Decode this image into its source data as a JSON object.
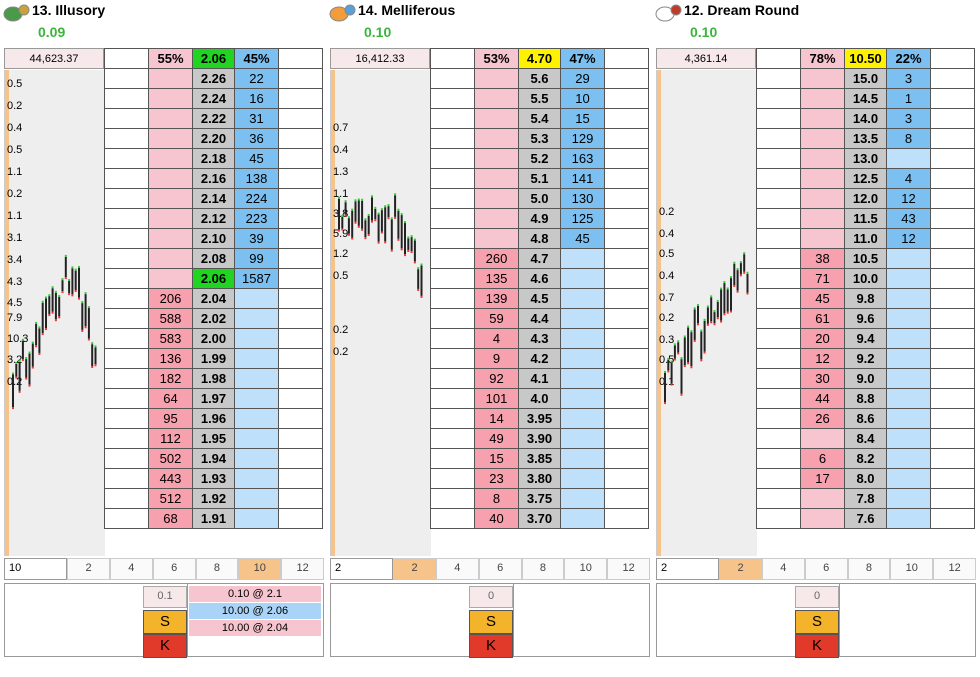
{
  "panels": [
    {
      "name": "13. Illusory",
      "value": "0.09",
      "volume": "44,623.37",
      "lay_pct": "55%",
      "ltp": "2.06",
      "back_pct": "45%",
      "ltp_style": "green",
      "y_labels": [
        "0.5",
        "0.2",
        "0.4",
        "0.5",
        "1.1",
        "0.2",
        "1.1",
        "3.1",
        "3.4",
        "4.3",
        "4.5",
        "7.9",
        "10.3",
        "3.2",
        "0.2"
      ],
      "rows": [
        {
          "lay": "",
          "price": "2.26",
          "back": "22"
        },
        {
          "lay": "",
          "price": "2.24",
          "back": "16"
        },
        {
          "lay": "",
          "price": "2.22",
          "back": "31"
        },
        {
          "lay": "",
          "price": "2.20",
          "back": "36"
        },
        {
          "lay": "",
          "price": "2.18",
          "back": "45"
        },
        {
          "lay": "",
          "price": "2.16",
          "back": "138"
        },
        {
          "lay": "",
          "price": "2.14",
          "back": "224"
        },
        {
          "lay": "",
          "price": "2.12",
          "back": "223"
        },
        {
          "lay": "",
          "price": "2.10",
          "back": "39"
        },
        {
          "lay": "",
          "price": "2.08",
          "back": "99"
        },
        {
          "lay": "",
          "price": "2.06",
          "back": "1587",
          "hl": "green"
        },
        {
          "lay": "206",
          "price": "2.04",
          "back": ""
        },
        {
          "lay": "588",
          "price": "2.02",
          "back": ""
        },
        {
          "lay": "583",
          "price": "2.00",
          "back": ""
        },
        {
          "lay": "136",
          "price": "1.99",
          "back": ""
        },
        {
          "lay": "182",
          "price": "1.98",
          "back": ""
        },
        {
          "lay": "64",
          "price": "1.97",
          "back": ""
        },
        {
          "lay": "95",
          "price": "1.96",
          "back": ""
        },
        {
          "lay": "112",
          "price": "1.95",
          "back": ""
        },
        {
          "lay": "502",
          "price": "1.94",
          "back": ""
        },
        {
          "lay": "443",
          "price": "1.93",
          "back": ""
        },
        {
          "lay": "512",
          "price": "1.92",
          "back": ""
        },
        {
          "lay": "68",
          "price": "1.91",
          "back": ""
        }
      ],
      "ticks": [
        "10",
        "2",
        "4",
        "6",
        "8",
        "10",
        "12"
      ],
      "tick_hl": 5,
      "stake": "0.1",
      "s": "S",
      "k": "K",
      "bets": [
        {
          "text": "0.10 @ 2.1",
          "type": "l"
        },
        {
          "text": "10.00 @ 2.06",
          "type": "b"
        },
        {
          "text": "10.00 @ 2.04",
          "type": "l"
        }
      ]
    },
    {
      "name": "14. Melliferous",
      "value": "0.10",
      "volume": "16,412.33",
      "lay_pct": "53%",
      "ltp": "4.70",
      "back_pct": "47%",
      "ltp_style": "yellow",
      "y_labels": [
        "0.7",
        "0.4",
        "1.3",
        "1.1",
        "3.8",
        "5.9",
        "1.2",
        "0.5",
        "0.2",
        "0.2"
      ],
      "rows": [
        {
          "lay": "",
          "price": "5.6",
          "back": "29"
        },
        {
          "lay": "",
          "price": "5.5",
          "back": "10"
        },
        {
          "lay": "",
          "price": "5.4",
          "back": "15"
        },
        {
          "lay": "",
          "price": "5.3",
          "back": "129"
        },
        {
          "lay": "",
          "price": "5.2",
          "back": "163"
        },
        {
          "lay": "",
          "price": "5.1",
          "back": "141"
        },
        {
          "lay": "",
          "price": "5.0",
          "back": "130"
        },
        {
          "lay": "",
          "price": "4.9",
          "back": "125"
        },
        {
          "lay": "",
          "price": "4.8",
          "back": "45"
        },
        {
          "lay": "260",
          "price": "4.7",
          "back": ""
        },
        {
          "lay": "135",
          "price": "4.6",
          "back": ""
        },
        {
          "lay": "139",
          "price": "4.5",
          "back": ""
        },
        {
          "lay": "59",
          "price": "4.4",
          "back": ""
        },
        {
          "lay": "4",
          "price": "4.3",
          "back": ""
        },
        {
          "lay": "9",
          "price": "4.2",
          "back": ""
        },
        {
          "lay": "92",
          "price": "4.1",
          "back": ""
        },
        {
          "lay": "101",
          "price": "4.0",
          "back": ""
        },
        {
          "lay": "14",
          "price": "3.95",
          "back": ""
        },
        {
          "lay": "49",
          "price": "3.90",
          "back": ""
        },
        {
          "lay": "15",
          "price": "3.85",
          "back": ""
        },
        {
          "lay": "23",
          "price": "3.80",
          "back": ""
        },
        {
          "lay": "8",
          "price": "3.75",
          "back": ""
        },
        {
          "lay": "40",
          "price": "3.70",
          "back": ""
        }
      ],
      "ticks": [
        "2",
        "2",
        "4",
        "6",
        "8",
        "10",
        "12"
      ],
      "tick_hl": 1,
      "stake": "0",
      "s": "S",
      "k": "K",
      "bets": []
    },
    {
      "name": "12. Dream Round",
      "value": "0.10",
      "volume": "4,361.14",
      "lay_pct": "78%",
      "ltp": "10.50",
      "back_pct": "22%",
      "ltp_style": "yellow",
      "y_labels": [
        "0.2",
        "0.4",
        "0.5",
        "0.4",
        "0.7",
        "0.2",
        "0.3",
        "0.5",
        "0.1"
      ],
      "rows": [
        {
          "lay": "",
          "price": "15.0",
          "back": "3"
        },
        {
          "lay": "",
          "price": "14.5",
          "back": "1"
        },
        {
          "lay": "",
          "price": "14.0",
          "back": "3"
        },
        {
          "lay": "",
          "price": "13.5",
          "back": "8"
        },
        {
          "lay": "",
          "price": "13.0",
          "back": ""
        },
        {
          "lay": "",
          "price": "12.5",
          "back": "4"
        },
        {
          "lay": "",
          "price": "12.0",
          "back": "12"
        },
        {
          "lay": "",
          "price": "11.5",
          "back": "43"
        },
        {
          "lay": "",
          "price": "11.0",
          "back": "12"
        },
        {
          "lay": "38",
          "price": "10.5",
          "back": ""
        },
        {
          "lay": "71",
          "price": "10.0",
          "back": ""
        },
        {
          "lay": "45",
          "price": "9.8",
          "back": ""
        },
        {
          "lay": "61",
          "price": "9.6",
          "back": ""
        },
        {
          "lay": "20",
          "price": "9.4",
          "back": ""
        },
        {
          "lay": "12",
          "price": "9.2",
          "back": ""
        },
        {
          "lay": "30",
          "price": "9.0",
          "back": ""
        },
        {
          "lay": "44",
          "price": "8.8",
          "back": ""
        },
        {
          "lay": "26",
          "price": "8.6",
          "back": ""
        },
        {
          "lay": "",
          "price": "8.4",
          "back": ""
        },
        {
          "lay": "6",
          "price": "8.2",
          "back": ""
        },
        {
          "lay": "17",
          "price": "8.0",
          "back": ""
        },
        {
          "lay": "",
          "price": "7.8",
          "back": ""
        },
        {
          "lay": "",
          "price": "7.6",
          "back": ""
        }
      ],
      "ticks": [
        "2",
        "2",
        "4",
        "6",
        "8",
        "10",
        "12"
      ],
      "tick_hl": 1,
      "stake": "0",
      "s": "S",
      "k": "K",
      "bets": []
    }
  ],
  "silk_icons": [
    "jockey-silk-green-icon",
    "jockey-silk-orange-icon",
    "jockey-silk-white-stars-icon"
  ]
}
